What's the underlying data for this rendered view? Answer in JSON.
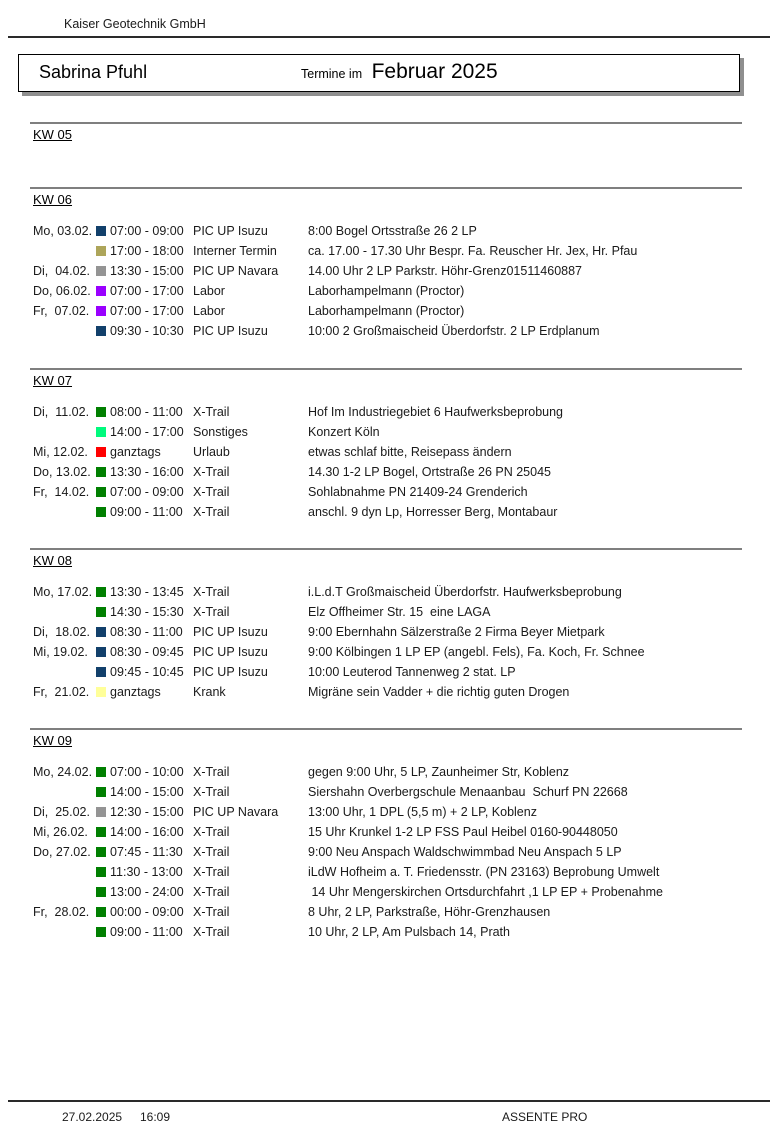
{
  "page": {
    "company": "Kaiser Geotechnik GmbH",
    "person": "Sabrina Pfuhl",
    "title_prefix": "Termine im",
    "title_month": "Februar 2025",
    "footer": {
      "date": "27.02.2025",
      "time": "16:09",
      "app_name": "ASSENTE PRO"
    }
  },
  "colors": {
    "navy": "#12406B",
    "olive": "#ADA55A",
    "gray": "#949494",
    "purple": "#9900FF",
    "green": "#007F00",
    "springgreen": "#00FA7D",
    "red": "#FF0000",
    "paleyellow": "#FFFF99"
  },
  "sections": [
    {
      "label": "KW 05",
      "rows": []
    },
    {
      "label": "KW 06",
      "rows": [
        {
          "date_label": "Mo, 03.02.",
          "color": "navy",
          "time": "07:00 - 09:00",
          "category": "PIC UP Isuzu",
          "description": "8:00 Bogel Ortsstraße 26 2 LP"
        },
        {
          "date_label": "",
          "color": "olive",
          "time": "17:00 - 18:00",
          "category": "Interner Termin",
          "description": "ca. 17.00 - 17.30 Uhr Bespr. Fa. Reuscher Hr. Jex, Hr. Pfau"
        },
        {
          "date_label": "Di,  04.02.",
          "color": "gray",
          "time": "13:30 - 15:00",
          "category": "PIC UP Navara",
          "description": "14.00 Uhr 2 LP Parkstr. Höhr-Grenz01511460887"
        },
        {
          "date_label": "Do, 06.02.",
          "color": "purple",
          "time": "07:00 - 17:00",
          "category": "Labor",
          "description": "Laborhampelmann (Proctor)"
        },
        {
          "date_label": "Fr,  07.02.",
          "color": "purple",
          "time": "07:00 - 17:00",
          "category": "Labor",
          "description": "Laborhampelmann (Proctor)"
        },
        {
          "date_label": "",
          "color": "navy",
          "time": "09:30 - 10:30",
          "category": "PIC UP Isuzu",
          "description": "10:00 2 Großmaischeid Überdorfstr. 2 LP Erdplanum"
        }
      ]
    },
    {
      "label": "KW 07",
      "rows": [
        {
          "date_label": "Di,  11.02.",
          "color": "green",
          "time": "08:00 - 11:00",
          "category": "X-Trail",
          "description": "Hof Im Industriegebiet 6 Haufwerksbeprobung"
        },
        {
          "date_label": "",
          "color": "springgreen",
          "time": "14:00 - 17:00",
          "category": "Sonstiges",
          "description": "Konzert Köln"
        },
        {
          "date_label": "Mi, 12.02.",
          "color": "red",
          "time": "ganztags",
          "category": "Urlaub",
          "description": "etwas schlaf bitte, Reisepass ändern"
        },
        {
          "date_label": "Do, 13.02.",
          "color": "green",
          "time": "13:30 - 16:00",
          "category": "X-Trail",
          "description": "14.30 1-2 LP Bogel, Ortstraße 26 PN 25045"
        },
        {
          "date_label": "Fr,  14.02.",
          "color": "green",
          "time": "07:00 - 09:00",
          "category": "X-Trail",
          "description": "Sohlabnahme PN 21409-24 Grenderich"
        },
        {
          "date_label": "",
          "color": "green",
          "time": "09:00 - 11:00",
          "category": "X-Trail",
          "description": "anschl. 9 dyn Lp, Horresser Berg, Montabaur"
        }
      ]
    },
    {
      "label": "KW 08",
      "rows": [
        {
          "date_label": "Mo, 17.02.",
          "color": "green",
          "time": "13:30 - 13:45",
          "category": "X-Trail",
          "description": "i.L.d.T Großmaischeid Überdorfstr. Haufwerksbeprobung"
        },
        {
          "date_label": "",
          "color": "green",
          "time": "14:30 - 15:30",
          "category": "X-Trail",
          "description": "Elz Offheimer Str. 15  eine LAGA"
        },
        {
          "date_label": "Di,  18.02.",
          "color": "navy",
          "time": "08:30 - 11:00",
          "category": "PIC UP Isuzu",
          "description": "9:00 Ebernhahn Sälzerstraße 2 Firma Beyer Mietpark"
        },
        {
          "date_label": "Mi, 19.02.",
          "color": "navy",
          "time": "08:30 - 09:45",
          "category": "PIC UP Isuzu",
          "description": "9:00 Kölbingen 1 LP EP (angebl. Fels), Fa. Koch, Fr. Schnee"
        },
        {
          "date_label": "",
          "color": "navy",
          "time": "09:45 - 10:45",
          "category": "PIC UP Isuzu",
          "description": "10:00 Leuterod Tannenweg 2 stat. LP"
        },
        {
          "date_label": "Fr,  21.02.",
          "color": "paleyellow",
          "time": "ganztags",
          "category": "Krank",
          "description": "Migräne sein Vadder + die richtig guten Drogen"
        }
      ]
    },
    {
      "label": "KW 09",
      "rows": [
        {
          "date_label": "Mo, 24.02.",
          "color": "green",
          "time": "07:00 - 10:00",
          "category": "X-Trail",
          "description": "gegen 9:00 Uhr, 5 LP, Zaunheimer Str, Koblenz"
        },
        {
          "date_label": "",
          "color": "green",
          "time": "14:00 - 15:00",
          "category": "X-Trail",
          "description": "Siershahn Overbergschule Menaanbau  Schurf PN 22668"
        },
        {
          "date_label": "Di,  25.02.",
          "color": "gray",
          "time": "12:30 - 15:00",
          "category": "PIC UP Navara",
          "description": "13:00 Uhr, 1 DPL (5,5 m) + 2 LP, Koblenz"
        },
        {
          "date_label": "Mi, 26.02.",
          "color": "green",
          "time": "14:00 - 16:00",
          "category": "X-Trail",
          "description": "15 Uhr Krunkel 1-2 LP FSS Paul Heibel 0160-90448050"
        },
        {
          "date_label": "Do, 27.02.",
          "color": "green",
          "time": "07:45 - 11:30",
          "category": "X-Trail",
          "description": "9:00 Neu Anspach Waldschwimmbad Neu Anspach 5 LP"
        },
        {
          "date_label": "",
          "color": "green",
          "time": "11:30 - 13:00",
          "category": "X-Trail",
          "description": "iLdW Hofheim a. T. Friedensstr. (PN 23163) Beprobung Umwelt"
        },
        {
          "date_label": "",
          "color": "green",
          "time": "13:00 - 24:00",
          "category": "X-Trail",
          "description": " 14 Uhr Mengerskirchen Ortsdurchfahrt ,1 LP EP + Probenahme"
        },
        {
          "date_label": "Fr,  28.02.",
          "color": "green",
          "time": "00:00 - 09:00",
          "category": "X-Trail",
          "description": "8 Uhr, 2 LP, Parkstraße, Höhr-Grenzhausen"
        },
        {
          "date_label": "",
          "color": "green",
          "time": "09:00 - 11:00",
          "category": "X-Trail",
          "description": "10 Uhr, 2 LP, Am Pulsbach 14, Prath"
        }
      ]
    }
  ]
}
